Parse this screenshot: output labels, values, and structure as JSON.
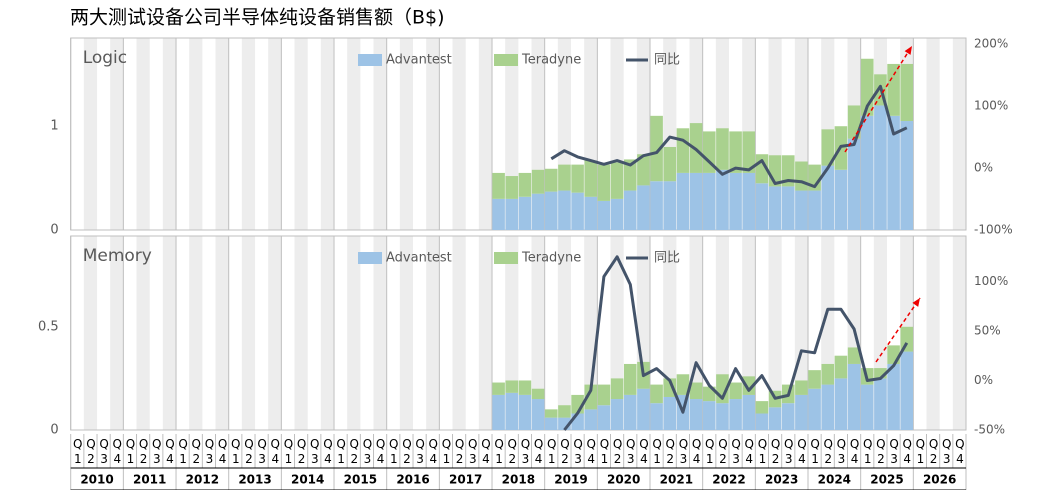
{
  "chart_data": {
    "type": "bar",
    "title": "两大测试设备公司半导体纯设备销售额（B$)",
    "years": [
      "2010",
      "2011",
      "2012",
      "2013",
      "2014",
      "2015",
      "2016",
      "2017",
      "2018",
      "2019",
      "2020",
      "2021",
      "2022",
      "2023",
      "2024",
      "2025",
      "2026"
    ],
    "quarters": [
      "Q1",
      "Q2",
      "Q3",
      "Q4"
    ],
    "panels": [
      {
        "label": "Logic",
        "ylim": [
          0,
          1.85
        ],
        "yticks": [
          0,
          1
        ],
        "y2lim": [
          -100,
          210
        ],
        "y2ticks": [
          {
            "value": -100,
            "label": "-100%"
          },
          {
            "value": 0,
            "label": "0%"
          },
          {
            "value": 100,
            "label": "100%"
          },
          {
            "value": 200,
            "label": "200%"
          }
        ],
        "series": [
          {
            "name": "Advantest",
            "color": "#9dc3e6",
            "values": [
              null,
              null,
              null,
              null,
              null,
              null,
              null,
              null,
              null,
              null,
              null,
              null,
              null,
              null,
              null,
              null,
              null,
              null,
              null,
              null,
              null,
              null,
              null,
              null,
              null,
              null,
              null,
              null,
              null,
              null,
              null,
              null,
              0.3,
              0.3,
              0.32,
              0.35,
              0.37,
              0.38,
              0.36,
              0.32,
              0.28,
              0.3,
              0.38,
              0.43,
              0.47,
              0.47,
              0.55,
              0.55,
              0.55,
              0.58,
              0.55,
              0.55,
              0.45,
              0.42,
              0.42,
              0.38,
              0.38,
              0.62,
              0.58,
              0.88,
              1.1,
              1.2,
              1.1,
              1.05,
              null,
              null,
              null,
              null
            ]
          },
          {
            "name": "Teradyne",
            "color": "#a9d18e",
            "values": [
              null,
              null,
              null,
              null,
              null,
              null,
              null,
              null,
              null,
              null,
              null,
              null,
              null,
              null,
              null,
              null,
              null,
              null,
              null,
              null,
              null,
              null,
              null,
              null,
              null,
              null,
              null,
              null,
              null,
              null,
              null,
              null,
              0.25,
              0.22,
              0.23,
              0.23,
              0.22,
              0.25,
              0.27,
              0.35,
              0.35,
              0.35,
              0.3,
              0.3,
              0.63,
              0.33,
              0.43,
              0.48,
              0.4,
              0.4,
              0.4,
              0.4,
              0.28,
              0.3,
              0.3,
              0.28,
              0.25,
              0.35,
              0.42,
              0.32,
              0.55,
              0.3,
              0.5,
              0.55,
              null,
              null,
              null,
              null
            ]
          },
          {
            "name": "同比",
            "color": "#44546a",
            "axis": "y2",
            "values": [
              null,
              null,
              null,
              null,
              null,
              null,
              null,
              null,
              null,
              null,
              null,
              null,
              null,
              null,
              null,
              null,
              null,
              null,
              null,
              null,
              null,
              null,
              null,
              null,
              null,
              null,
              null,
              null,
              null,
              null,
              null,
              null,
              null,
              null,
              null,
              null,
              15,
              28,
              18,
              12,
              6,
              12,
              5,
              20,
              25,
              50,
              45,
              30,
              10,
              -10,
              0,
              -3,
              12,
              -25,
              -20,
              -22,
              -30,
              0,
              35,
              38,
              100,
              132,
              55,
              65,
              null,
              null,
              null,
              null
            ]
          }
        ]
      },
      {
        "label": "Memory",
        "ylim": [
          0,
          0.94
        ],
        "yticks": [
          0,
          0.5
        ],
        "y2lim": [
          -50,
          146
        ],
        "y2ticks": [
          {
            "value": -50,
            "label": "-50%"
          },
          {
            "value": 0,
            "label": "0%"
          },
          {
            "value": 50,
            "label": "50%"
          },
          {
            "value": 100,
            "label": "100%"
          }
        ],
        "series": [
          {
            "name": "Advantest",
            "color": "#9dc3e6",
            "values": [
              null,
              null,
              null,
              null,
              null,
              null,
              null,
              null,
              null,
              null,
              null,
              null,
              null,
              null,
              null,
              null,
              null,
              null,
              null,
              null,
              null,
              null,
              null,
              null,
              null,
              null,
              null,
              null,
              null,
              null,
              null,
              null,
              0.17,
              0.18,
              0.17,
              0.15,
              0.06,
              0.06,
              0.08,
              0.1,
              0.12,
              0.15,
              0.17,
              0.2,
              0.13,
              0.16,
              0.17,
              0.15,
              0.14,
              0.13,
              0.15,
              0.17,
              0.08,
              0.11,
              0.13,
              0.17,
              0.2,
              0.22,
              0.25,
              0.32,
              0.22,
              0.25,
              0.32,
              0.38,
              null,
              null,
              null,
              null
            ]
          },
          {
            "name": "Teradyne",
            "color": "#a9d18e",
            "values": [
              null,
              null,
              null,
              null,
              null,
              null,
              null,
              null,
              null,
              null,
              null,
              null,
              null,
              null,
              null,
              null,
              null,
              null,
              null,
              null,
              null,
              null,
              null,
              null,
              null,
              null,
              null,
              null,
              null,
              null,
              null,
              null,
              0.06,
              0.06,
              0.07,
              0.05,
              0.04,
              0.06,
              0.09,
              0.12,
              0.1,
              0.1,
              0.15,
              0.13,
              0.09,
              0.09,
              0.1,
              0.08,
              0.07,
              0.14,
              0.08,
              0.09,
              0.06,
              0.08,
              0.09,
              0.07,
              0.09,
              0.1,
              0.11,
              0.08,
              0.08,
              0.05,
              0.09,
              0.12,
              null,
              null,
              null,
              null
            ]
          },
          {
            "name": "同比",
            "color": "#44546a",
            "axis": "y2",
            "values": [
              null,
              null,
              null,
              null,
              null,
              null,
              null,
              null,
              null,
              null,
              null,
              null,
              null,
              null,
              null,
              null,
              null,
              null,
              null,
              null,
              null,
              null,
              null,
              null,
              null,
              null,
              null,
              null,
              null,
              null,
              null,
              null,
              null,
              null,
              null,
              null,
              null,
              -50,
              -33,
              -10,
              105,
              125,
              97,
              5,
              12,
              0,
              -32,
              18,
              -5,
              -18,
              12,
              -10,
              5,
              -18,
              -15,
              30,
              28,
              72,
              72,
              52,
              0,
              2,
              15,
              38,
              null,
              null,
              null,
              null
            ]
          }
        ]
      }
    ]
  }
}
